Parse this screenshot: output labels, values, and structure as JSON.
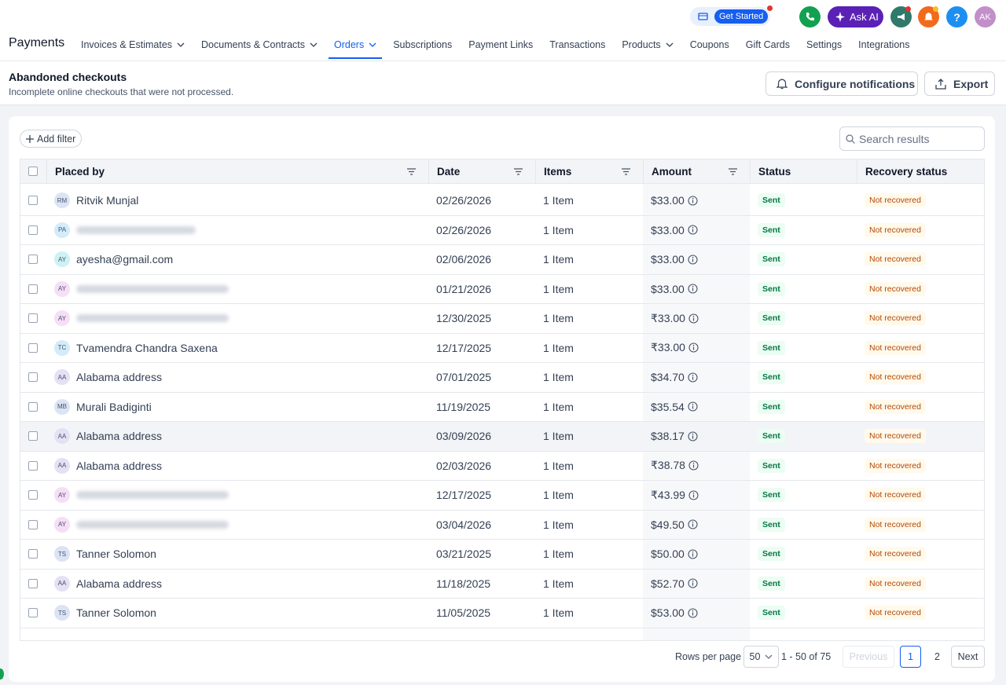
{
  "topbar": {
    "get_started": "Get Started",
    "ask_ai": "Ask AI",
    "help": "?",
    "avatar": "AK"
  },
  "nav": {
    "title": "Payments",
    "active_tab": 2,
    "tabs": [
      {
        "label": "Invoices & Estimates",
        "dropdown": true
      },
      {
        "label": "Documents & Contracts",
        "dropdown": true
      },
      {
        "label": "Orders",
        "dropdown": true
      },
      {
        "label": "Subscriptions",
        "dropdown": false
      },
      {
        "label": "Payment Links",
        "dropdown": false
      },
      {
        "label": "Transactions",
        "dropdown": false
      },
      {
        "label": "Products",
        "dropdown": true
      },
      {
        "label": "Coupons",
        "dropdown": false
      },
      {
        "label": "Gift Cards",
        "dropdown": false
      },
      {
        "label": "Settings",
        "dropdown": false
      },
      {
        "label": "Integrations",
        "dropdown": false
      }
    ]
  },
  "header": {
    "title": "Abandoned checkouts",
    "subtitle": "Incomplete online checkouts that were not processed.",
    "configure": "Configure notifications",
    "export": "Export"
  },
  "toolbar": {
    "add_filter": "Add filter",
    "search_placeholder": "Search results"
  },
  "table": {
    "hovered_row": 8,
    "columns": [
      {
        "label": "Placed by",
        "filter": true
      },
      {
        "label": "Date",
        "filter": true
      },
      {
        "label": "Items",
        "filter": true
      },
      {
        "label": "Amount",
        "filter": true
      },
      {
        "label": "Status",
        "filter": false
      },
      {
        "label": "Recovery status",
        "filter": false
      }
    ],
    "rows": [
      {
        "initials": "RM",
        "avatar_color": "#dbe4f5",
        "name": "Ritvik Munjal",
        "date": "02/26/2026",
        "items": "1 Item",
        "amount": "$33.00",
        "status": "Sent",
        "recovery": "Not recovered"
      },
      {
        "initials": "PA",
        "avatar_color": "#d3ecfa",
        "name": null,
        "date": "02/26/2026",
        "items": "1 Item",
        "amount": "$33.00",
        "status": "Sent",
        "recovery": "Not recovered"
      },
      {
        "initials": "AY",
        "avatar_color": "#cdf1f4",
        "name": "ayesha@gmail.com",
        "date": "02/06/2026",
        "items": "1 Item",
        "amount": "$33.00",
        "status": "Sent",
        "recovery": "Not recovered"
      },
      {
        "initials": "AY",
        "avatar_color": "#f6def7",
        "name": null,
        "date": "01/21/2026",
        "items": "1 Item",
        "amount": "$33.00",
        "status": "Sent",
        "recovery": "Not recovered"
      },
      {
        "initials": "AY",
        "avatar_color": "#f6def7",
        "name": null,
        "date": "12/30/2025",
        "items": "1 Item",
        "amount": "₹33.00",
        "status": "Sent",
        "recovery": "Not recovered"
      },
      {
        "initials": "TC",
        "avatar_color": "#d3ecfa",
        "name": "Tvamendra Chandra Saxena",
        "date": "12/17/2025",
        "items": "1 Item",
        "amount": "₹33.00",
        "status": "Sent",
        "recovery": "Not recovered"
      },
      {
        "initials": "AA",
        "avatar_color": "#e4e1f5",
        "name": "Alabama address",
        "date": "07/01/2025",
        "items": "1 Item",
        "amount": "$34.70",
        "status": "Sent",
        "recovery": "Not recovered"
      },
      {
        "initials": "MB",
        "avatar_color": "#dbe4f5",
        "name": "Murali Badiginti",
        "date": "11/19/2025",
        "items": "1 Item",
        "amount": "$35.54",
        "status": "Sent",
        "recovery": "Not recovered"
      },
      {
        "initials": "AA",
        "avatar_color": "#e4e1f5",
        "name": "Alabama address",
        "date": "03/09/2026",
        "items": "1 Item",
        "amount": "$38.17",
        "status": "Sent",
        "recovery": "Not recovered"
      },
      {
        "initials": "AA",
        "avatar_color": "#e4e1f5",
        "name": "Alabama address",
        "date": "02/03/2026",
        "items": "1 Item",
        "amount": "₹38.78",
        "status": "Sent",
        "recovery": "Not recovered"
      },
      {
        "initials": "AY",
        "avatar_color": "#f6def7",
        "name": null,
        "date": "12/17/2025",
        "items": "1 Item",
        "amount": "₹43.99",
        "status": "Sent",
        "recovery": "Not recovered"
      },
      {
        "initials": "AY",
        "avatar_color": "#f6def7",
        "name": null,
        "date": "03/04/2026",
        "items": "1 Item",
        "amount": "$49.50",
        "status": "Sent",
        "recovery": "Not recovered"
      },
      {
        "initials": "TS",
        "avatar_color": "#dbe4f5",
        "name": "Tanner Solomon",
        "date": "03/21/2025",
        "items": "1 Item",
        "amount": "$50.00",
        "status": "Sent",
        "recovery": "Not recovered"
      },
      {
        "initials": "AA",
        "avatar_color": "#e4e1f5",
        "name": "Alabama address",
        "date": "11/18/2025",
        "items": "1 Item",
        "amount": "$52.70",
        "status": "Sent",
        "recovery": "Not recovered"
      },
      {
        "initials": "TS",
        "avatar_color": "#dbe4f5",
        "name": "Tanner Solomon",
        "date": "11/05/2025",
        "items": "1 Item",
        "amount": "$53.00",
        "status": "Sent",
        "recovery": "Not recovered"
      }
    ]
  },
  "pagination": {
    "rows_per_page_label": "Rows per page",
    "rows_per_page": "50",
    "range": "1 - 50 of 75",
    "previous": "Previous",
    "pages": [
      "1",
      "2"
    ],
    "current_page": 0,
    "next": "Next"
  }
}
